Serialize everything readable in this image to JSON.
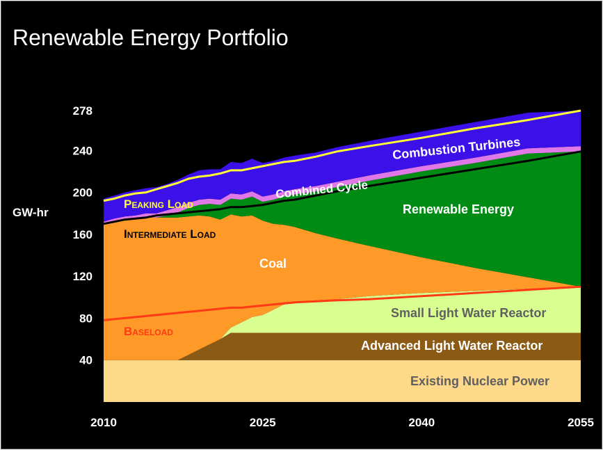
{
  "chart_data": {
    "type": "area",
    "title": "Renewable Energy Portfolio",
    "ylabel": "GW-hr",
    "xlabel": "",
    "xlim": [
      2010,
      2055
    ],
    "ylim": [
      0,
      278
    ],
    "yticks": [
      40,
      80,
      120,
      160,
      200,
      240,
      278
    ],
    "xticks": [
      2010,
      2025,
      2040,
      2055
    ],
    "grid": false,
    "x": [
      2010,
      2011,
      2012,
      2013,
      2014,
      2015,
      2016,
      2017,
      2018,
      2019,
      2020,
      2021,
      2022,
      2023,
      2024,
      2025,
      2026,
      2027,
      2028,
      2030,
      2032,
      2035,
      2040,
      2045,
      2050,
      2055
    ],
    "series": [
      {
        "name": "Existing Nuclear Power",
        "color": "#FFD98A",
        "values": [
          40,
          40,
          40,
          40,
          40,
          40,
          40,
          40,
          40,
          40,
          40,
          40,
          40,
          40,
          40,
          40,
          40,
          40,
          40,
          40,
          40,
          40,
          40,
          40,
          40,
          40
        ]
      },
      {
        "name": "Advanced Light Water Reactor",
        "color": "#8B5A14",
        "values": [
          0,
          0,
          0,
          0,
          0,
          0,
          0,
          0,
          5,
          10,
          15,
          20,
          26,
          26,
          26,
          26,
          26,
          26,
          26,
          26,
          26,
          26,
          26,
          26,
          26,
          26
        ]
      },
      {
        "name": "Small Light Water Reactor",
        "color": "#D8FF90",
        "values": [
          0,
          0,
          0,
          0,
          0,
          0,
          0,
          0,
          0,
          0,
          0,
          0,
          5,
          10,
          15,
          17,
          22,
          27,
          28,
          30,
          32,
          35,
          38,
          40,
          42,
          44
        ]
      },
      {
        "name": "Coal",
        "color": "#FF9A28",
        "values": [
          130,
          132,
          134,
          135,
          136,
          136,
          136,
          136,
          132,
          128,
          122,
          114,
          108,
          101,
          97,
          90,
          82,
          76,
          73,
          65,
          58,
          48,
          34,
          22,
          11,
          0
        ]
      },
      {
        "name": "Renewable Energy",
        "color": "#008C14",
        "values": [
          0,
          0,
          0,
          0,
          0,
          0,
          2,
          5,
          8,
          10,
          12,
          14,
          15,
          16,
          18,
          18,
          23,
          27,
          31,
          40,
          49,
          62,
          82,
          100,
          118,
          129
        ]
      },
      {
        "name": "Combined Cycle",
        "color": "#E078E8",
        "values": [
          2,
          3,
          3,
          3,
          4,
          4,
          5,
          5,
          5,
          5,
          5,
          5,
          5,
          5,
          5,
          5,
          5,
          5,
          5,
          5,
          5,
          5,
          5,
          5,
          5,
          5
        ]
      },
      {
        "name": "Combustion Turbines",
        "color": "#3C10E8",
        "values": [
          22,
          22,
          23,
          24,
          24,
          25,
          25,
          26,
          27,
          28,
          28,
          29,
          30,
          30,
          31,
          32,
          32,
          32,
          32,
          32,
          33,
          33,
          33,
          34,
          34,
          34
        ]
      }
    ],
    "reference_lines": [
      {
        "name": "Baseload",
        "color": "#FF3A14",
        "values": [
          78,
          79,
          80,
          81,
          82,
          83,
          84,
          85,
          86,
          87,
          88,
          89,
          90,
          90,
          91,
          92,
          93,
          94,
          95,
          96,
          97,
          98,
          101,
          104,
          107,
          110
        ]
      },
      {
        "name": "Intermediate Load",
        "color": "#000000",
        "values": [
          170,
          172,
          174,
          175,
          176,
          178,
          179,
          180,
          181,
          182,
          183,
          184,
          186,
          186,
          187,
          188,
          190,
          192,
          193,
          197,
          201,
          206,
          214,
          222,
          230,
          239
        ]
      },
      {
        "name": "Peaking Load",
        "color": "#FFFF33",
        "values": [
          192,
          194,
          197,
          199,
          200,
          203,
          206,
          209,
          213,
          215,
          216,
          218,
          221,
          221,
          223,
          225,
          227,
          229,
          230,
          234,
          239,
          244,
          252,
          261,
          269,
          278
        ]
      }
    ],
    "annotations": [
      {
        "text": "Combustion Turbines",
        "color": "#ffffff"
      },
      {
        "text": "Combined Cycle",
        "color": "#ffffff"
      },
      {
        "text": "Renewable Energy",
        "color": "#ffffff"
      },
      {
        "text": "Coal",
        "color": "#ffffff"
      },
      {
        "text": "Small Light Water Reactor",
        "color": "#606060"
      },
      {
        "text": "Advanced Light Water Reactor",
        "color": "#ffffff"
      },
      {
        "text": "Existing Nuclear Power",
        "color": "#606060"
      },
      {
        "text": "Peaking Load",
        "color": "#FFFF33"
      },
      {
        "text": "Intermediate Load",
        "color": "#000000"
      },
      {
        "text": "Baseload",
        "color": "#FF3A14"
      }
    ]
  }
}
